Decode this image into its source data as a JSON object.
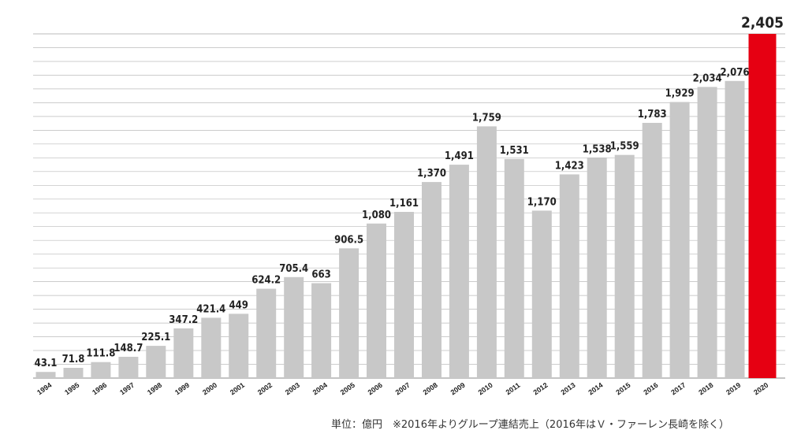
{
  "chart_data": {
    "type": "bar",
    "categories": [
      "1994",
      "1995",
      "1996",
      "1997",
      "1998",
      "1999",
      "2000",
      "2001",
      "2002",
      "2003",
      "2004",
      "2005",
      "2006",
      "2007",
      "2008",
      "2009",
      "2010",
      "2011",
      "2012",
      "2013",
      "2014",
      "2015",
      "2016",
      "2017",
      "2018",
      "2019",
      "2020"
    ],
    "values": [
      43.1,
      71.8,
      111.8,
      148.7,
      225.1,
      347.2,
      421.4,
      449,
      624.2,
      705.4,
      663,
      906.5,
      1080,
      1161,
      1370,
      1491,
      1759,
      1531,
      1170,
      1423,
      1538,
      1559,
      1783,
      1929,
      2034,
      2076,
      2405
    ],
    "value_labels": [
      "43.1",
      "71.8",
      "111.8",
      "148.7",
      "225.1",
      "347.2",
      "421.4",
      "449",
      "624.2",
      "705.4",
      "663",
      "906.5",
      "1,080",
      "1,161",
      "1,370",
      "1,491",
      "1,759",
      "1,531",
      "1,170",
      "1,423",
      "1,538",
      "1,559",
      "1,783",
      "1,929",
      "2,034",
      "2,076",
      "2,405"
    ],
    "highlight_index": 26,
    "ylim": [
      0,
      2405
    ],
    "grid": true,
    "colors": {
      "bar": "#c8c8c8",
      "bar_highlight": "#e60012",
      "grid": "#bbbbbb",
      "label": "#222222"
    }
  },
  "footnote": "単位：億円　※2016年よりグループ連結売上（2016年はＶ・ファーレン長崎を除く）"
}
